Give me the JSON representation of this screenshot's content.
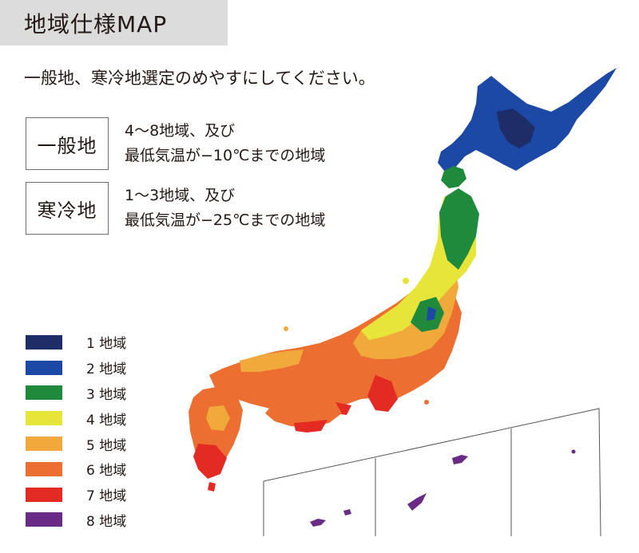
{
  "title": "地域仕様MAP",
  "intro": "一般地、寒冷地選定のめやすにしてください。",
  "definitions": [
    {
      "term": "一般地",
      "line1": "4〜8地域、及び",
      "line2": "最低気温が−10℃までの地域"
    },
    {
      "term": "寒冷地",
      "line1": "1〜3地域、及び",
      "line2": "最低気温が−25℃までの地域"
    }
  ],
  "legend": [
    {
      "label": "1 地域",
      "color": "#1e2c68"
    },
    {
      "label": "2 地域",
      "color": "#1d49a6"
    },
    {
      "label": "3 地域",
      "color": "#1f8a3b"
    },
    {
      "label": "4 地域",
      "color": "#e8e53a"
    },
    {
      "label": "5 地域",
      "color": "#f0a93a"
    },
    {
      "label": "6 地域",
      "color": "#ec6e30"
    },
    {
      "label": "7 地域",
      "color": "#e32b24"
    },
    {
      "label": "8 地域",
      "color": "#6a2b86"
    }
  ]
}
